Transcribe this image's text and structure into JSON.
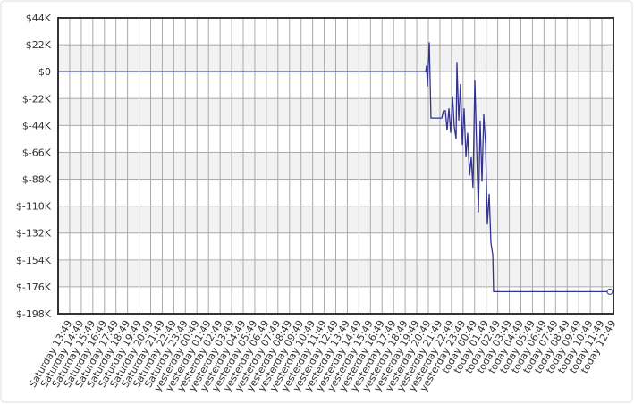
{
  "chart_data": {
    "type": "line",
    "xlim": [
      -1,
      47
    ],
    "xticks": [
      {
        "value": 0,
        "label": "Saturday 13:49"
      },
      {
        "value": 1,
        "label": "Saturday 14:49"
      },
      {
        "value": 2,
        "label": "Saturday 15:49"
      },
      {
        "value": 3,
        "label": "Saturday 16:49"
      },
      {
        "value": 4,
        "label": "Saturday 17:49"
      },
      {
        "value": 5,
        "label": "Saturday 18:49"
      },
      {
        "value": 6,
        "label": "Saturday 19:49"
      },
      {
        "value": 7,
        "label": "Saturday 20:49"
      },
      {
        "value": 8,
        "label": "Saturday 21:49"
      },
      {
        "value": 9,
        "label": "Saturday 22:49"
      },
      {
        "value": 10,
        "label": "Saturday 23:49"
      },
      {
        "value": 11,
        "label": "yesterday 00:49"
      },
      {
        "value": 12,
        "label": "yesterday 01:49"
      },
      {
        "value": 13,
        "label": "yesterday 02:49"
      },
      {
        "value": 14,
        "label": "yesterday 03:49"
      },
      {
        "value": 15,
        "label": "yesterday 04:49"
      },
      {
        "value": 16,
        "label": "yesterday 05:49"
      },
      {
        "value": 17,
        "label": "yesterday 06:49"
      },
      {
        "value": 18,
        "label": "yesterday 07:49"
      },
      {
        "value": 19,
        "label": "yesterday 08:49"
      },
      {
        "value": 20,
        "label": "yesterday 09:49"
      },
      {
        "value": 21,
        "label": "yesterday 10:49"
      },
      {
        "value": 22,
        "label": "yesterday 11:49"
      },
      {
        "value": 23,
        "label": "yesterday 12:49"
      },
      {
        "value": 24,
        "label": "yesterday 13:49"
      },
      {
        "value": 25,
        "label": "yesterday 14:49"
      },
      {
        "value": 26,
        "label": "yesterday 15:49"
      },
      {
        "value": 27,
        "label": "yesterday 16:49"
      },
      {
        "value": 28,
        "label": "yesterday 17:49"
      },
      {
        "value": 29,
        "label": "yesterday 18:49"
      },
      {
        "value": 30,
        "label": "yesterday 19:49"
      },
      {
        "value": 31,
        "label": "yesterday 20:49"
      },
      {
        "value": 32,
        "label": "yesterday 21:49"
      },
      {
        "value": 33,
        "label": "yesterday 22:49"
      },
      {
        "value": 34,
        "label": "yesterday 23:49"
      },
      {
        "value": 35,
        "label": "today 00:49"
      },
      {
        "value": 36,
        "label": "today 01:49"
      },
      {
        "value": 37,
        "label": "today 02:49"
      },
      {
        "value": 38,
        "label": "today 03:49"
      },
      {
        "value": 39,
        "label": "today 04:49"
      },
      {
        "value": 40,
        "label": "today 05:49"
      },
      {
        "value": 41,
        "label": "today 06:49"
      },
      {
        "value": 42,
        "label": "today 07:49"
      },
      {
        "value": 43,
        "label": "today 08:49"
      },
      {
        "value": 44,
        "label": "today 09:49"
      },
      {
        "value": 45,
        "label": "today 10:49"
      },
      {
        "value": 46,
        "label": "today 11:49"
      },
      {
        "value": 47,
        "label": "today 12:49"
      }
    ],
    "ylim": [
      -198000,
      44000
    ],
    "yticks": [
      {
        "value": 44000,
        "label": "$44K"
      },
      {
        "value": 22000,
        "label": "$22K"
      },
      {
        "value": 0,
        "label": "$0"
      },
      {
        "value": -22000,
        "label": "$-22K"
      },
      {
        "value": -44000,
        "label": "$-44K"
      },
      {
        "value": -66000,
        "label": "$-66K"
      },
      {
        "value": -88000,
        "label": "$-88K"
      },
      {
        "value": -110000,
        "label": "$-110K"
      },
      {
        "value": -132000,
        "label": "$-132K"
      },
      {
        "value": -154000,
        "label": "$-154K"
      },
      {
        "value": -176000,
        "label": "$-176K"
      },
      {
        "value": -198000,
        "label": "$-198K"
      }
    ],
    "grid": true,
    "series": [
      {
        "color": "#33338f",
        "marker_last": true,
        "x": [
          -1,
          30.77,
          30.85,
          30.92,
          31.08,
          31.23,
          32.16,
          32.31,
          32.47,
          32.62,
          32.78,
          32.93,
          33.09,
          33.24,
          33.4,
          33.47,
          33.63,
          33.78,
          33.94,
          34.09,
          34.25,
          34.4,
          34.56,
          34.71,
          34.86,
          35.02,
          35.17,
          35.33,
          35.48,
          35.64,
          35.79,
          35.95,
          36.1,
          36.26,
          36.41,
          36.57,
          36.64,
          46.69
        ],
        "values": [
          0,
          0,
          5000,
          -12000,
          24000,
          -38000,
          -38000,
          -32000,
          -32000,
          -48000,
          -30000,
          -50000,
          -20000,
          -45000,
          -55000,
          8000,
          -40000,
          -10000,
          -60000,
          -30000,
          -70000,
          -50000,
          -85000,
          -70000,
          -95000,
          -7000,
          -60000,
          -115000,
          -40000,
          -90000,
          -35000,
          -60000,
          -125000,
          -100000,
          -140000,
          -150000,
          -180000,
          -180000
        ]
      }
    ]
  }
}
